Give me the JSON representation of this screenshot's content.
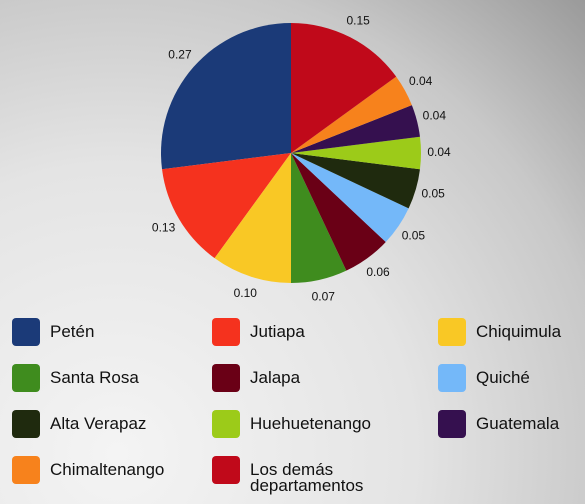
{
  "chart_data": {
    "type": "pie",
    "categories": [
      "Petén",
      "Jutiapa",
      "Chiquimula",
      "Santa Rosa",
      "Jalapa",
      "Quiché",
      "Alta Verapaz",
      "Huehuetenango",
      "Guatemala",
      "Chimaltenango",
      "Los demás departamentos"
    ],
    "values": [
      0.27,
      0.13,
      0.1,
      0.07,
      0.06,
      0.05,
      0.05,
      0.04,
      0.04,
      0.04,
      0.15
    ],
    "value_labels": [
      "0.27",
      "0.13",
      "0.10",
      "0.07",
      "0.06",
      "0.05",
      "0.05",
      "0.04",
      "0.04",
      "0.04",
      "0.15"
    ],
    "colors": [
      "#1b3a78",
      "#f5321e",
      "#f9c825",
      "#3f8c1e",
      "#6a0016",
      "#74b8f9",
      "#1f2a0e",
      "#9ccb19",
      "#35104f",
      "#f7821c",
      "#c0091a"
    ]
  }
}
